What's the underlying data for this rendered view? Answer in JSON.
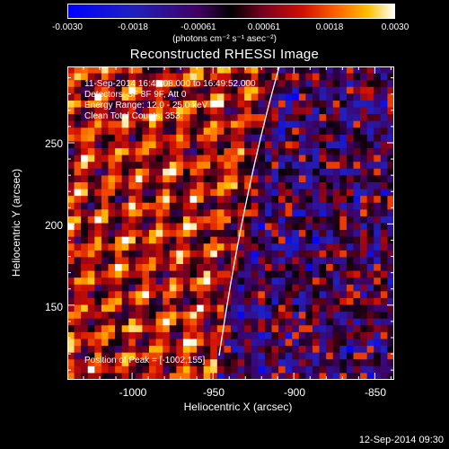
{
  "colorbar": {
    "ticks": [
      "-0.0030",
      "-0.0018",
      "-0.00061",
      "0.00061",
      "0.0018",
      "0.0030"
    ],
    "units": "(photons cm⁻² s⁻¹ asec⁻²)",
    "min": -0.003,
    "max": 0.003
  },
  "title": "Reconstructed RHESSI Image",
  "info_lines": [
    "11-Sep-2014 16:49:08.000 to 16:49:52.000",
    "Detectors: 3F 8F 9F, Att 0",
    "Energy Range: 12.0 - 25.0 keV",
    "Clean    Total Counts: 353."
  ],
  "peak_text": "Position of Peak = [-1002,155]",
  "xlabel": "Heliocentric X (arcsec)",
  "ylabel": "Heliocentric Y (arcsec)",
  "xticks": [
    "-1000",
    "-950",
    "-900",
    "-850"
  ],
  "yticks": [
    "250",
    "200",
    "150"
  ],
  "xrange": [
    -1040,
    -838
  ],
  "yrange": [
    104,
    297
  ],
  "timestamp": "12-Sep-2014 09:30",
  "colors": {
    "background": "#000000",
    "axis": "#ffffff",
    "limb": "#ffffff"
  },
  "image_grid": {
    "cols": 48,
    "rows": 46
  }
}
